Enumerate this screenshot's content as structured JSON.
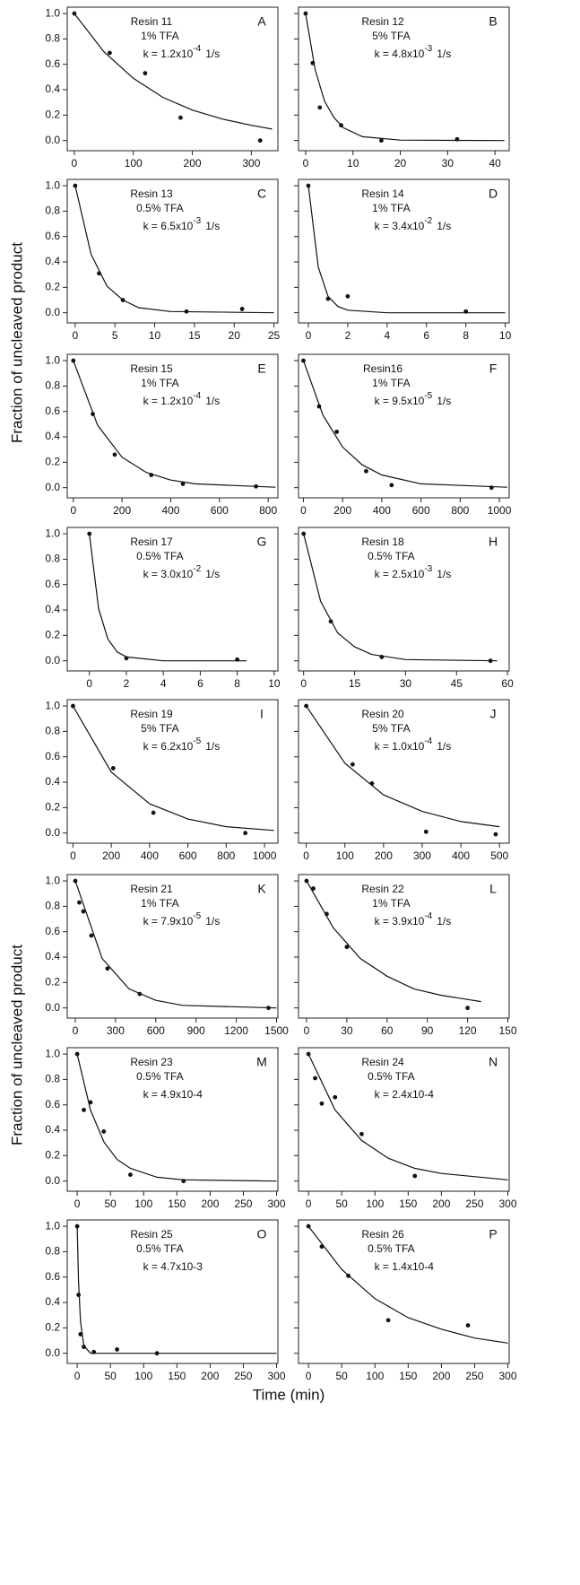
{
  "y_label": "Fraction of uncleaved product",
  "x_label": "Time (min)",
  "chart_data": [
    {
      "type": "scatter",
      "panel": "A",
      "resin": "Resin 11",
      "acid": "1% TFA",
      "k": "k = 1.2x10",
      "k_exponent": "-4",
      "k_unit": "1/s",
      "x": [
        0,
        60,
        120,
        180,
        315
      ],
      "values": [
        1,
        0.69,
        0.53,
        0.18,
        0.0
      ],
      "fit": {
        "x": [
          0,
          50,
          100,
          150,
          200,
          250,
          300,
          335
        ],
        "values": [
          1,
          0.7,
          0.49,
          0.34,
          0.24,
          0.17,
          0.12,
          0.09
        ]
      },
      "xlim": [
        -12,
        345
      ],
      "xticks": [
        0,
        100,
        200,
        300
      ],
      "ylim": [
        -0.08,
        1.05
      ],
      "yticks": [
        {
          "value": 0,
          "label": "0.0"
        },
        {
          "value": 0.2,
          "label": "0.2"
        },
        {
          "value": 0.4,
          "label": "0.4"
        },
        {
          "value": 0.6,
          "label": "0.6"
        },
        {
          "value": 0.8,
          "label": "0.8"
        },
        {
          "value": 1,
          "label": "1.0"
        }
      ]
    },
    {
      "type": "scatter",
      "panel": "B",
      "resin": "Resin 12",
      "acid": "5% TFA",
      "k": "k = 4.8x10",
      "k_exponent": "-3",
      "k_unit": "1/s",
      "x": [
        0,
        1.5,
        3,
        7.5,
        16,
        32
      ],
      "values": [
        1,
        0.61,
        0.26,
        0.12,
        0.0,
        0.01
      ],
      "fit": {
        "x": [
          0,
          2,
          4,
          6,
          8,
          12,
          20,
          42
        ],
        "values": [
          1,
          0.56,
          0.31,
          0.18,
          0.1,
          0.03,
          0.003,
          0
        ]
      },
      "xlim": [
        -1.5,
        43
      ],
      "xticks": [
        0,
        10,
        20,
        30,
        40
      ],
      "ylim": [
        -0.08,
        1.05
      ],
      "yticks": [
        0,
        0.2,
        0.4,
        0.6,
        0.8,
        1
      ]
    },
    {
      "type": "scatter",
      "panel": "C",
      "resin": "Resin 13",
      "acid": "0.5% TFA",
      "k": "k = 6.5x10",
      "k_exponent": "-3",
      "k_unit": "1/s",
      "x": [
        0,
        3,
        6,
        14,
        21
      ],
      "values": [
        1,
        0.31,
        0.1,
        0.01,
        0.03
      ],
      "fit": {
        "x": [
          0,
          2,
          4,
          6,
          8,
          12,
          25
        ],
        "values": [
          1,
          0.46,
          0.21,
          0.1,
          0.04,
          0.01,
          0
        ]
      },
      "xlim": [
        -1,
        25.5
      ],
      "xticks": [
        0,
        5,
        10,
        15,
        20,
        25
      ],
      "ylim": [
        -0.08,
        1.05
      ],
      "yticks": [
        {
          "value": 0,
          "label": "0.0"
        },
        {
          "value": 0.2,
          "label": "0.2"
        },
        {
          "value": 0.4,
          "label": "0.4"
        },
        {
          "value": 0.6,
          "label": "0.6"
        },
        {
          "value": 0.8,
          "label": "0.8"
        },
        {
          "value": 1,
          "label": "1.0"
        }
      ]
    },
    {
      "type": "scatter",
      "panel": "D",
      "resin": "Resin 14",
      "acid": "1% TFA",
      "k": "k = 3.4x10",
      "k_exponent": "-2",
      "k_unit": "1/s",
      "x": [
        0,
        1,
        2,
        8
      ],
      "values": [
        1,
        0.11,
        0.13,
        0.01
      ],
      "fit": {
        "x": [
          0,
          0.5,
          1,
          1.5,
          2,
          4,
          10
        ],
        "values": [
          1,
          0.36,
          0.13,
          0.05,
          0.02,
          0,
          0
        ]
      },
      "xlim": [
        -0.5,
        10.2
      ],
      "xticks": [
        0,
        2,
        4,
        6,
        8,
        10
      ],
      "ylim": [
        -0.08,
        1.05
      ],
      "yticks": [
        0,
        0.2,
        0.4,
        0.6,
        0.8,
        1
      ]
    },
    {
      "type": "scatter",
      "panel": "E",
      "resin": "Resin 15",
      "acid": "1% TFA",
      "k": "k = 1.2x10",
      "k_exponent": "-4",
      "k_unit": "1/s",
      "x": [
        0,
        80,
        170,
        320,
        450,
        750
      ],
      "values": [
        1,
        0.58,
        0.26,
        0.1,
        0.03,
        0.01
      ],
      "fit": {
        "x": [
          0,
          100,
          200,
          300,
          400,
          500,
          830
        ],
        "values": [
          1,
          0.49,
          0.24,
          0.12,
          0.06,
          0.03,
          0.003
        ]
      },
      "xlim": [
        -25,
        840
      ],
      "xticks": [
        0,
        200,
        400,
        600,
        800
      ],
      "ylim": [
        -0.08,
        1.05
      ],
      "yticks": [
        {
          "value": 0,
          "label": "0.0"
        },
        {
          "value": 0.2,
          "label": "0.2"
        },
        {
          "value": 0.4,
          "label": "0.4"
        },
        {
          "value": 0.6,
          "label": "0.6"
        },
        {
          "value": 0.8,
          "label": "0.8"
        },
        {
          "value": 1,
          "label": "1.0"
        }
      ]
    },
    {
      "type": "scatter",
      "panel": "F",
      "resin": "Resin16",
      "acid": "1% TFA",
      "k": "k = 9.5x10",
      "k_exponent": "-5",
      "k_unit": "1/s",
      "x": [
        0,
        80,
        170,
        320,
        450,
        960
      ],
      "values": [
        1,
        0.64,
        0.44,
        0.13,
        0.02,
        0.0
      ],
      "fit": {
        "x": [
          0,
          100,
          200,
          300,
          400,
          600,
          1040
        ],
        "values": [
          1,
          0.57,
          0.32,
          0.18,
          0.1,
          0.03,
          0.003
        ]
      },
      "xlim": [
        -25,
        1050
      ],
      "xticks": [
        0,
        200,
        400,
        600,
        800,
        1000
      ],
      "ylim": [
        -0.08,
        1.05
      ],
      "yticks": [
        0,
        0.2,
        0.4,
        0.6,
        0.8,
        1
      ]
    },
    {
      "type": "scatter",
      "panel": "G",
      "resin": "Resin 17",
      "acid": "0.5% TFA",
      "k": "k = 3.0x10",
      "k_exponent": "-2",
      "k_unit": "1/s",
      "x": [
        0,
        2,
        8
      ],
      "values": [
        1,
        0.02,
        0.01
      ],
      "fit": {
        "x": [
          0,
          0.5,
          1,
          1.5,
          2,
          4,
          8.5
        ],
        "values": [
          1,
          0.41,
          0.17,
          0.07,
          0.03,
          0,
          0
        ]
      },
      "xlim": [
        -1.2,
        10.2
      ],
      "xticks": [
        0,
        2,
        4,
        6,
        8,
        10
      ],
      "ylim": [
        -0.08,
        1.05
      ],
      "yticks": [
        {
          "value": 0,
          "label": "0.0"
        },
        {
          "value": 0.2,
          "label": "0.2"
        },
        {
          "value": 0.4,
          "label": "0.4"
        },
        {
          "value": 0.6,
          "label": "0.6"
        },
        {
          "value": 0.8,
          "label": "0.8"
        },
        {
          "value": 1,
          "label": "1.0"
        }
      ]
    },
    {
      "type": "scatter",
      "panel": "H",
      "resin": "Resin 18",
      "acid": "0.5% TFA",
      "k": "k = 2.5x10",
      "k_exponent": "-3",
      "k_unit": "1/s",
      "x": [
        0,
        8,
        23,
        55
      ],
      "values": [
        1,
        0.31,
        0.03,
        0.0
      ],
      "fit": {
        "x": [
          0,
          5,
          10,
          15,
          20,
          30,
          57
        ],
        "values": [
          1,
          0.47,
          0.22,
          0.11,
          0.05,
          0.01,
          0
        ]
      },
      "xlim": [
        -1.5,
        60.5
      ],
      "xticks": [
        0,
        15,
        30,
        45,
        60
      ],
      "ylim": [
        -0.08,
        1.05
      ],
      "yticks": [
        0,
        0.2,
        0.4,
        0.6,
        0.8,
        1
      ]
    },
    {
      "type": "scatter",
      "panel": "I",
      "resin": "Resin 19",
      "acid": "5% TFA",
      "k": "k = 6.2x10",
      "k_exponent": "-5",
      "k_unit": "1/s",
      "x": [
        0,
        210,
        420,
        900
      ],
      "values": [
        1,
        0.51,
        0.16,
        0.0
      ],
      "fit": {
        "x": [
          0,
          200,
          400,
          600,
          800,
          1050
        ],
        "values": [
          1,
          0.48,
          0.23,
          0.11,
          0.05,
          0.02
        ]
      },
      "xlim": [
        -30,
        1070
      ],
      "xticks": [
        0,
        200,
        400,
        600,
        800,
        1000
      ],
      "ylim": [
        -0.08,
        1.05
      ],
      "yticks": [
        {
          "value": 0,
          "label": "0.0"
        },
        {
          "value": 0.2,
          "label": "0.2"
        },
        {
          "value": 0.4,
          "label": "0.4"
        },
        {
          "value": 0.6,
          "label": "0.6"
        },
        {
          "value": 0.8,
          "label": "0.8"
        },
        {
          "value": 1,
          "label": "1.0"
        }
      ]
    },
    {
      "type": "scatter",
      "panel": "J",
      "resin": "Resin 20",
      "acid": "5% TFA",
      "k": "k = 1.0x10",
      "k_exponent": "-4",
      "k_unit": "1/s",
      "x": [
        0,
        120,
        170,
        310,
        490
      ],
      "values": [
        1,
        0.54,
        0.39,
        0.01,
        -0.01
      ],
      "fit": {
        "x": [
          0,
          100,
          200,
          300,
          400,
          500
        ],
        "values": [
          1,
          0.55,
          0.3,
          0.17,
          0.09,
          0.05
        ]
      },
      "xlim": [
        -20,
        525
      ],
      "xticks": [
        0,
        100,
        200,
        300,
        400,
        500
      ],
      "ylim": [
        -0.08,
        1.05
      ],
      "yticks": [
        0,
        0.2,
        0.4,
        0.6,
        0.8,
        1
      ]
    },
    {
      "type": "scatter",
      "panel": "K",
      "resin": "Resin 21",
      "acid": "1% TFA",
      "k": "k = 7.9x10",
      "k_exponent": "-5",
      "k_unit": "1/s",
      "x": [
        0,
        30,
        60,
        120,
        240,
        480,
        1440
      ],
      "values": [
        1,
        0.83,
        0.76,
        0.57,
        0.31,
        0.11,
        0.0
      ],
      "fit": {
        "x": [
          0,
          200,
          400,
          600,
          800,
          1500
        ],
        "values": [
          1,
          0.39,
          0.15,
          0.06,
          0.02,
          0
        ]
      },
      "xlim": [
        -60,
        1510
      ],
      "xticks": [
        0,
        300,
        600,
        900,
        1200,
        1500
      ],
      "ylim": [
        -0.08,
        1.05
      ],
      "yticks": [
        {
          "value": 0,
          "label": "0.0"
        },
        {
          "value": 0.2,
          "label": "0.2"
        },
        {
          "value": 0.4,
          "label": "0.4"
        },
        {
          "value": 0.6,
          "label": "0.6"
        },
        {
          "value": 0.8,
          "label": "0.8"
        },
        {
          "value": 1,
          "label": "1.0"
        }
      ]
    },
    {
      "type": "scatter",
      "panel": "L",
      "resin": "Resin 22",
      "acid": "1% TFA",
      "k": "k = 3.9x10",
      "k_exponent": "-4",
      "k_unit": "1/s",
      "x": [
        0,
        5,
        15,
        30,
        120
      ],
      "values": [
        1,
        0.94,
        0.74,
        0.48,
        0.0
      ],
      "fit": {
        "x": [
          0,
          20,
          40,
          60,
          80,
          100,
          130
        ],
        "values": [
          1,
          0.63,
          0.39,
          0.25,
          0.15,
          0.1,
          0.05
        ]
      },
      "xlim": [
        -6,
        151
      ],
      "xticks": [
        0,
        30,
        60,
        90,
        120,
        150
      ],
      "ylim": [
        -0.08,
        1.05
      ],
      "yticks": [
        0,
        0.2,
        0.4,
        0.6,
        0.8,
        1
      ]
    },
    {
      "type": "scatter",
      "panel": "M",
      "resin": "Resin 23",
      "acid": "0.5% TFA",
      "k": "k = 4.9x10-4",
      "x": [
        0,
        10,
        20,
        40,
        80,
        160
      ],
      "values": [
        1,
        0.56,
        0.62,
        0.39,
        0.05,
        0.0
      ],
      "fit": {
        "x": [
          0,
          20,
          40,
          60,
          80,
          120,
          160,
          300
        ],
        "values": [
          1,
          0.56,
          0.31,
          0.17,
          0.1,
          0.03,
          0.01,
          0
        ]
      },
      "xlim": [
        -15,
        302
      ],
      "xticks": [
        0,
        50,
        100,
        150,
        200,
        250,
        300
      ],
      "ylim": [
        -0.08,
        1.05
      ],
      "yticks": [
        {
          "value": 0,
          "label": "0.0"
        },
        {
          "value": 0.2,
          "label": "0.2"
        },
        {
          "value": 0.4,
          "label": "0.4"
        },
        {
          "value": 0.6,
          "label": "0.6"
        },
        {
          "value": 0.8,
          "label": "0.8"
        },
        {
          "value": 1,
          "label": "1.0"
        }
      ]
    },
    {
      "type": "scatter",
      "panel": "N",
      "resin": "Resin 24",
      "acid": "0.5% TFA",
      "k": "k = 2.4x10-4",
      "x": [
        0,
        10,
        20,
        40,
        80,
        160
      ],
      "values": [
        1,
        0.81,
        0.61,
        0.66,
        0.37,
        0.04
      ],
      "fit": {
        "x": [
          0,
          40,
          80,
          120,
          160,
          200,
          300
        ],
        "values": [
          1,
          0.56,
          0.32,
          0.18,
          0.1,
          0.06,
          0.01
        ]
      },
      "xlim": [
        -15,
        302
      ],
      "xticks": [
        0,
        50,
        100,
        150,
        200,
        250,
        300
      ],
      "ylim": [
        -0.08,
        1.05
      ],
      "yticks": [
        0,
        0.2,
        0.4,
        0.6,
        0.8,
        1
      ]
    },
    {
      "type": "scatter",
      "panel": "O",
      "resin": "Resin 25",
      "acid": "0.5% TFA",
      "k": "k = 4.7x10-3",
      "x": [
        0,
        2,
        5,
        10,
        25,
        60,
        120
      ],
      "values": [
        1,
        0.46,
        0.15,
        0.05,
        0.01,
        0.03,
        0.0
      ],
      "fit": {
        "x": [
          0,
          2,
          5,
          10,
          20,
          300
        ],
        "values": [
          1,
          0.57,
          0.25,
          0.06,
          0,
          0
        ]
      },
      "xlim": [
        -15,
        302
      ],
      "xticks": [
        0,
        50,
        100,
        150,
        200,
        250,
        300
      ],
      "ylim": [
        -0.08,
        1.05
      ],
      "yticks": [
        {
          "value": 0,
          "label": "0.0"
        },
        {
          "value": 0.2,
          "label": "0.2"
        },
        {
          "value": 0.4,
          "label": "0.4"
        },
        {
          "value": 0.6,
          "label": "0.6"
        },
        {
          "value": 0.8,
          "label": "0.8"
        },
        {
          "value": 1,
          "label": "1.0"
        }
      ]
    },
    {
      "type": "scatter",
      "panel": "P",
      "resin": "Resin 26",
      "acid": "0.5% TFA",
      "k": "k = 1.4x10-4",
      "x": [
        0,
        20,
        60,
        120,
        240
      ],
      "values": [
        1,
        0.84,
        0.61,
        0.26,
        0.22
      ],
      "fit": {
        "x": [
          0,
          50,
          100,
          150,
          200,
          250,
          300
        ],
        "values": [
          1,
          0.66,
          0.43,
          0.28,
          0.19,
          0.12,
          0.08
        ]
      },
      "xlim": [
        -15,
        302
      ],
      "xticks": [
        0,
        50,
        100,
        150,
        200,
        250,
        300
      ],
      "ylim": [
        -0.08,
        1.05
      ],
      "yticks": [
        0,
        0.2,
        0.4,
        0.6,
        0.8,
        1
      ]
    }
  ]
}
